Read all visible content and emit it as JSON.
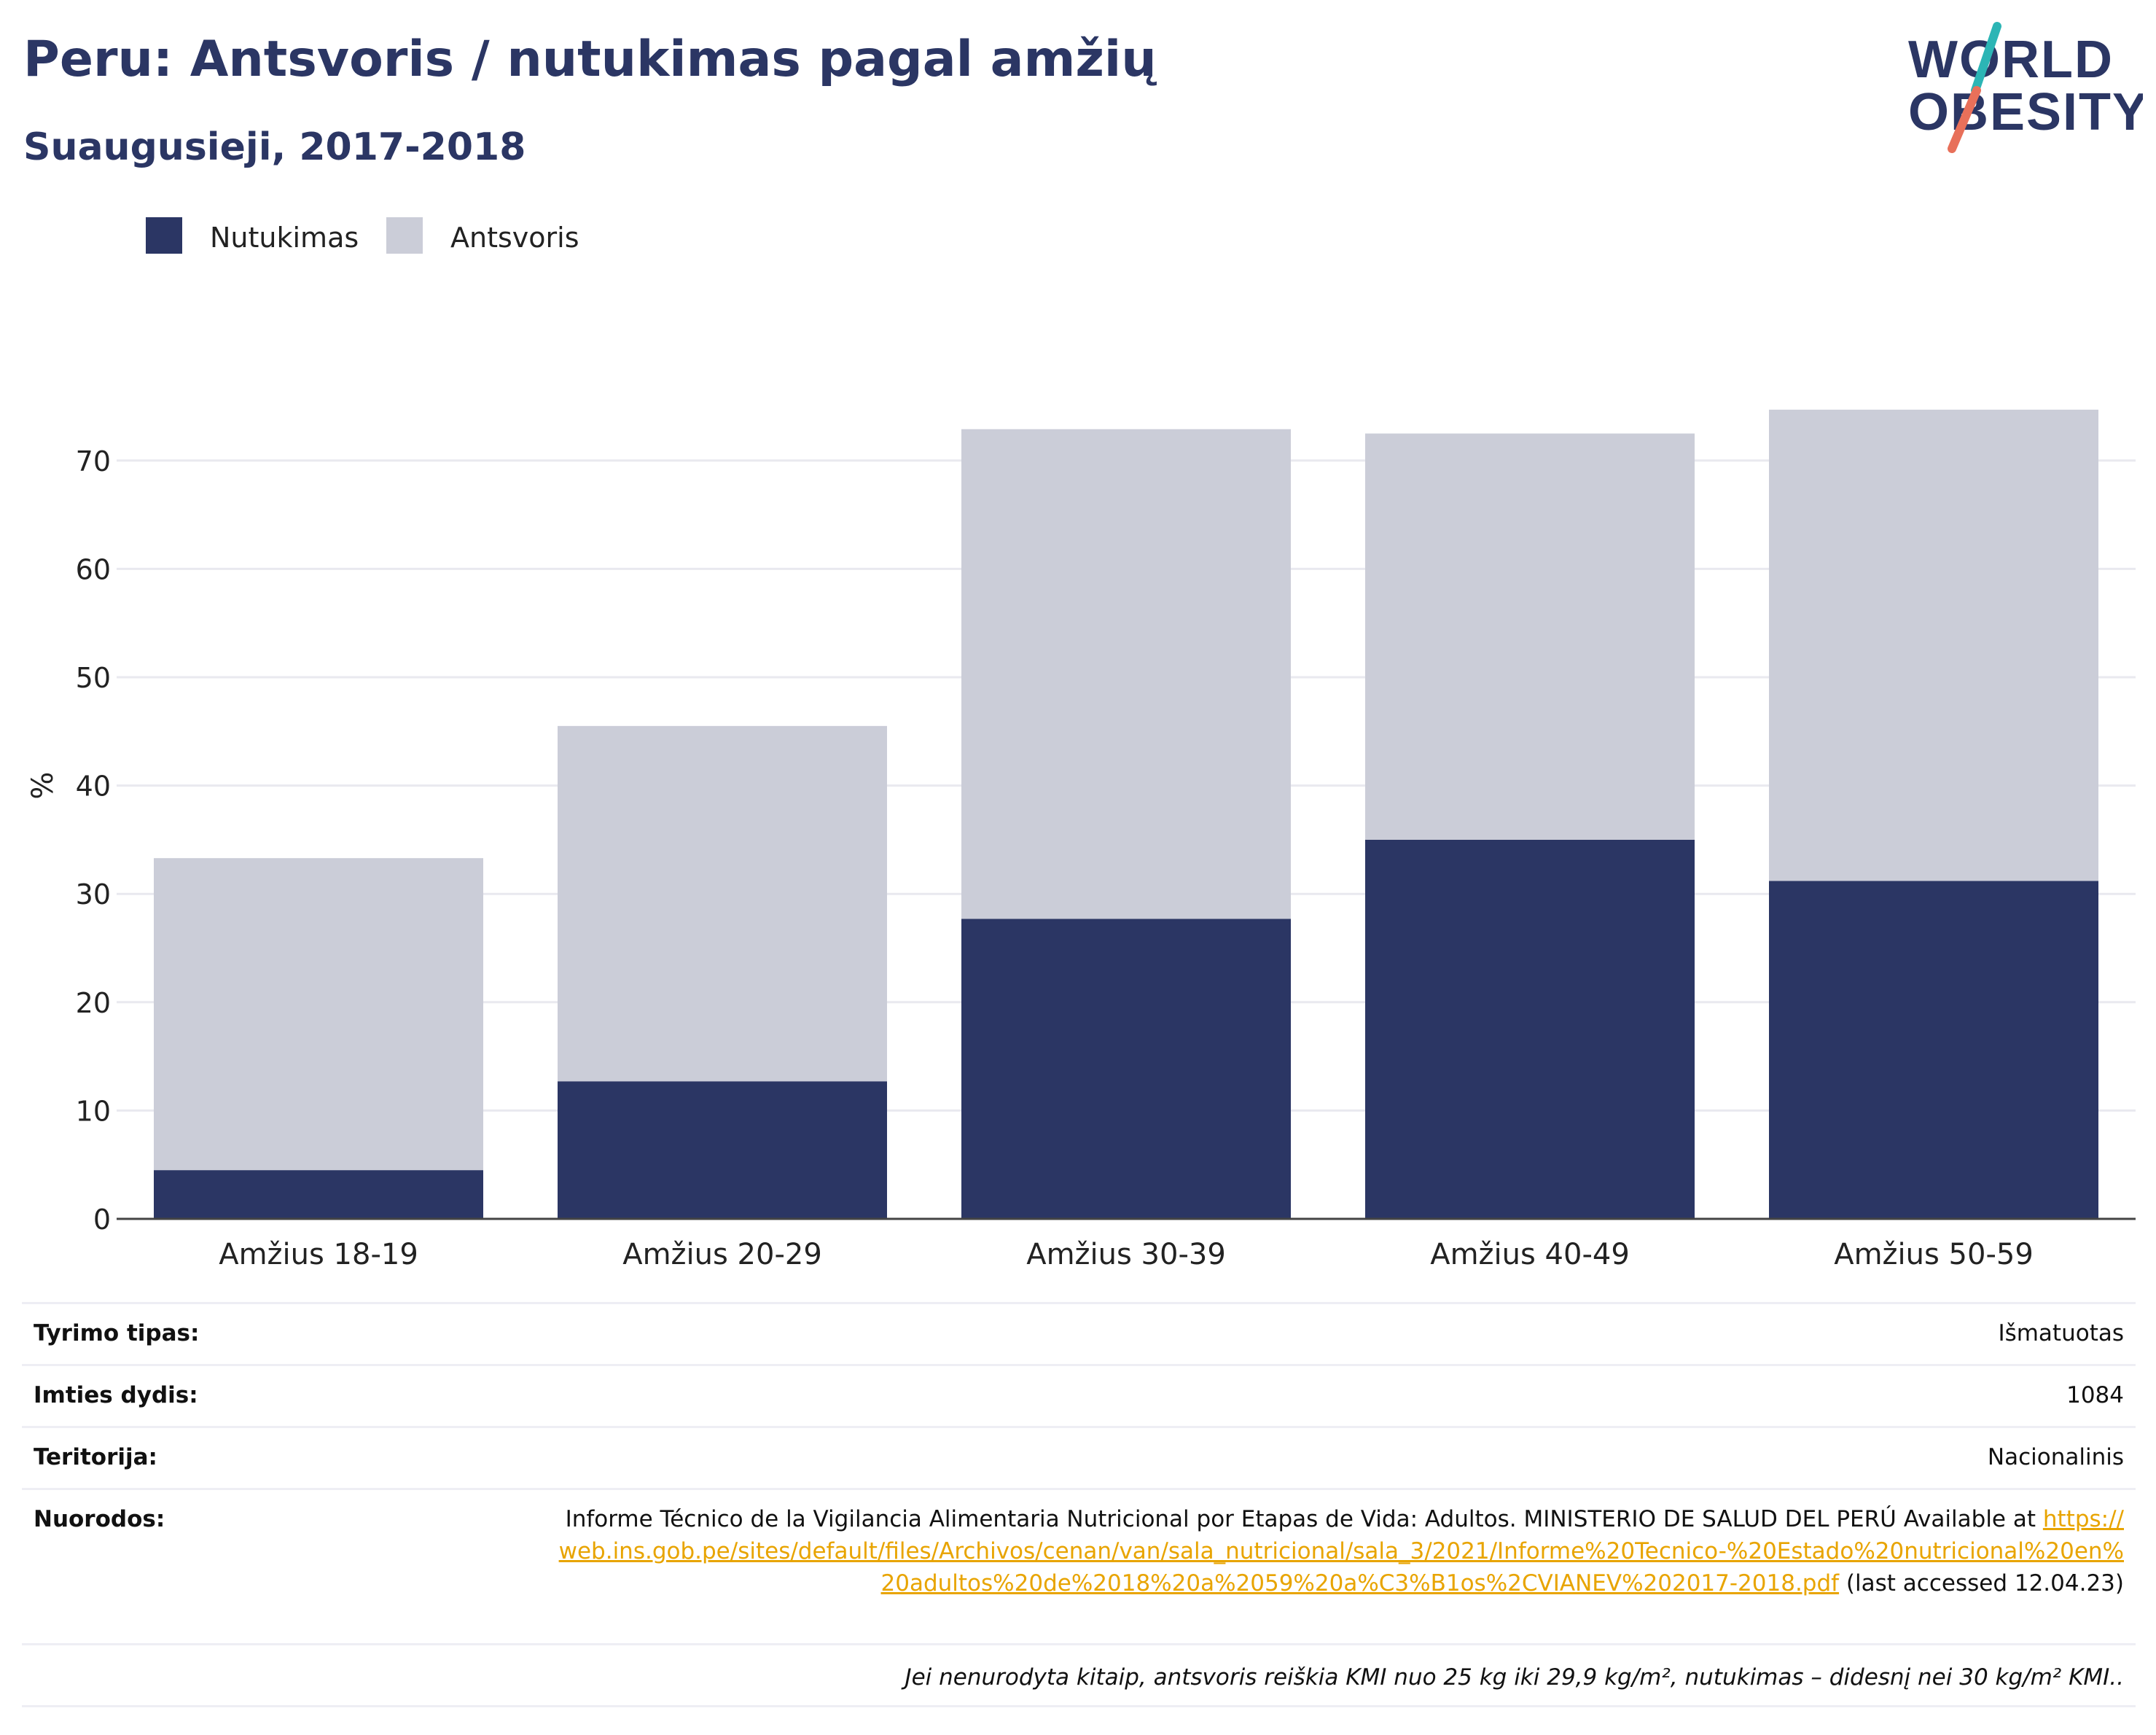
{
  "header": {
    "title": "Peru: Antsvoris / nutukimas pagal amžių",
    "subtitle": "Suaugusieji, 2017-2018"
  },
  "logo": {
    "line1": "WORLD",
    "line2": "OBESITY"
  },
  "colors": {
    "obesity": "#2b3664",
    "overweight": "#cbcdd8",
    "title": "#2b3664",
    "logo_slash_top": "#2cb5b5",
    "logo_slash_bottom": "#e8705a",
    "link": "#e8a400"
  },
  "legend": [
    {
      "label": "Nutukimas",
      "color": "#2b3664"
    },
    {
      "label": "Antsvoris",
      "color": "#cbcdd8"
    }
  ],
  "chart_data": {
    "type": "bar",
    "stacked": true,
    "title": "Peru: Antsvoris / nutukimas pagal amžių",
    "subtitle": "Suaugusieji, 2017-2018",
    "ylabel": "%",
    "xlabel": "",
    "ylim": [
      0,
      80
    ],
    "yticks": [
      0,
      10,
      20,
      30,
      40,
      50,
      60,
      70
    ],
    "grid": true,
    "legend_position": "top-left",
    "categories": [
      "Amžius 18-19",
      "Amžius 20-29",
      "Amžius 30-39",
      "Amžius 40-49",
      "Amžius 50-59"
    ],
    "series": [
      {
        "name": "Nutukimas",
        "color": "#2b3664",
        "values": [
          4.5,
          12.7,
          27.7,
          35.0,
          31.2
        ]
      },
      {
        "name": "Antsvoris",
        "color": "#cbcdd8",
        "values": [
          28.8,
          32.8,
          45.2,
          37.5,
          43.5
        ]
      }
    ]
  },
  "info": {
    "rows": [
      {
        "key": "Tyrimo tipas:",
        "value": "Išmatuotas"
      },
      {
        "key": "Imties dydis:",
        "value": "1084"
      },
      {
        "key": "Teritorija:",
        "value": "Nacionalinis"
      }
    ],
    "reference": {
      "key": "Nuorodos:",
      "text_before": "Informe Técnico de la Vigilancia Alimentaria Nutricional por Etapas de Vida: Adultos. MINISTERIO DE SALUD DEL PERÚ Available at ",
      "link": "https://web.ins.gob.pe/sites/default/files/Archivos/cenan/van/sala_nutricional/sala_3/2021/Informe%20Tecnico-%20Estado%20nutricional%20en%20adultos%20de%2018%20a%2059%20a%C3%B1os%2CVIANEV%202017-2018.pdf",
      "text_after": " (last accessed 12.04.23)"
    },
    "note": "Jei nenurodyta kitaip, antsvoris reiškia KMI nuo 25 kg iki 29,9 kg/m², nutukimas – didesnį nei 30 kg/m² KMI.."
  }
}
